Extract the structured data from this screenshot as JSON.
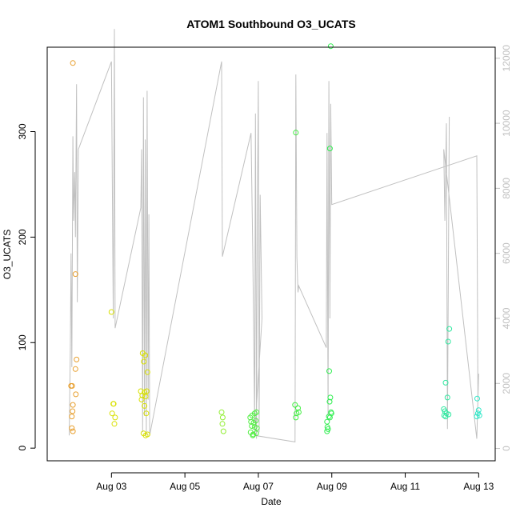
{
  "chart_data": {
    "type": "scatter",
    "title": "ATOM1 Southbound O3_UCATS",
    "xlabel": "Date",
    "ylabel": "O3_UCATS",
    "x_ticks": [
      "Aug 03",
      "Aug 05",
      "Aug 07",
      "Aug 09",
      "Aug 11",
      "Aug 13"
    ],
    "x_tick_values": [
      3,
      5,
      7,
      9,
      11,
      13
    ],
    "x_range": [
      1.25,
      13.45
    ],
    "y_ticks": [
      0,
      100,
      200,
      300
    ],
    "y_range": [
      -12,
      380
    ],
    "y2_ticks": [
      0,
      2000,
      4000,
      6000,
      8000,
      10000,
      12000
    ],
    "y2_range": [
      -380,
      12340
    ],
    "y2_color": "#c0c0c0",
    "grid": false,
    "series": [
      {
        "type": "points",
        "color_by_date": true,
        "points": [
          {
            "x": 1.95,
            "y": 365,
            "color": "#e8a030"
          },
          {
            "x": 1.9,
            "y": 59,
            "color": "#e8a030"
          },
          {
            "x": 1.93,
            "y": 59,
            "color": "#e8a030"
          },
          {
            "x": 1.95,
            "y": 41,
            "color": "#e8a030"
          },
          {
            "x": 1.94,
            "y": 35,
            "color": "#e8a030"
          },
          {
            "x": 1.92,
            "y": 30,
            "color": "#e8a030"
          },
          {
            "x": 1.92,
            "y": 19,
            "color": "#e8a030"
          },
          {
            "x": 1.95,
            "y": 16,
            "color": "#e8a030"
          },
          {
            "x": 2.02,
            "y": 165,
            "color": "#e8a030"
          },
          {
            "x": 2.05,
            "y": 84,
            "color": "#e8a030"
          },
          {
            "x": 2.02,
            "y": 75,
            "color": "#e8a030"
          },
          {
            "x": 2.03,
            "y": 51,
            "color": "#e8a030"
          },
          {
            "x": 3.0,
            "y": 129,
            "color": "#d8e000"
          },
          {
            "x": 3.05,
            "y": 42,
            "color": "#d8e000"
          },
          {
            "x": 3.06,
            "y": 42,
            "color": "#d8e000"
          },
          {
            "x": 3.02,
            "y": 33,
            "color": "#d8e000"
          },
          {
            "x": 3.1,
            "y": 29,
            "color": "#d8e000"
          },
          {
            "x": 3.08,
            "y": 23,
            "color": "#d8e000"
          },
          {
            "x": 3.85,
            "y": 90,
            "color": "#d8e000"
          },
          {
            "x": 3.92,
            "y": 88,
            "color": "#d8e000"
          },
          {
            "x": 3.88,
            "y": 82,
            "color": "#d8e000"
          },
          {
            "x": 3.98,
            "y": 72,
            "color": "#d8e000"
          },
          {
            "x": 3.8,
            "y": 54,
            "color": "#d8e000"
          },
          {
            "x": 3.9,
            "y": 53,
            "color": "#d8e000"
          },
          {
            "x": 3.96,
            "y": 54,
            "color": "#d8e000"
          },
          {
            "x": 3.84,
            "y": 50,
            "color": "#d8e000"
          },
          {
            "x": 3.93,
            "y": 49,
            "color": "#d8e000"
          },
          {
            "x": 3.82,
            "y": 46,
            "color": "#d8e000"
          },
          {
            "x": 3.9,
            "y": 40,
            "color": "#d8e000"
          },
          {
            "x": 3.95,
            "y": 33,
            "color": "#d8e000"
          },
          {
            "x": 3.87,
            "y": 14,
            "color": "#d8e000"
          },
          {
            "x": 3.93,
            "y": 12,
            "color": "#d8e000"
          },
          {
            "x": 3.98,
            "y": 13,
            "color": "#d8e000"
          },
          {
            "x": 6.0,
            "y": 34,
            "color": "#90ee30"
          },
          {
            "x": 6.03,
            "y": 29,
            "color": "#90ee30"
          },
          {
            "x": 6.02,
            "y": 23,
            "color": "#90ee30"
          },
          {
            "x": 6.05,
            "y": 16,
            "color": "#90ee30"
          },
          {
            "x": 6.78,
            "y": 29,
            "color": "#50ee40"
          },
          {
            "x": 6.83,
            "y": 31,
            "color": "#50ee40"
          },
          {
            "x": 6.9,
            "y": 33,
            "color": "#50ee40"
          },
          {
            "x": 6.95,
            "y": 34,
            "color": "#50ee40"
          },
          {
            "x": 6.8,
            "y": 25,
            "color": "#50ee40"
          },
          {
            "x": 6.87,
            "y": 24,
            "color": "#50ee40"
          },
          {
            "x": 6.93,
            "y": 26,
            "color": "#50ee40"
          },
          {
            "x": 6.82,
            "y": 21,
            "color": "#50ee40"
          },
          {
            "x": 6.9,
            "y": 20,
            "color": "#50ee40"
          },
          {
            "x": 6.96,
            "y": 19,
            "color": "#50ee40"
          },
          {
            "x": 6.79,
            "y": 15,
            "color": "#50ee40"
          },
          {
            "x": 6.86,
            "y": 13,
            "color": "#50ee40"
          },
          {
            "x": 6.94,
            "y": 14,
            "color": "#50ee40"
          },
          {
            "x": 6.85,
            "y": 12,
            "color": "#50ee40"
          },
          {
            "x": 8.02,
            "y": 299,
            "color": "#40ee40"
          },
          {
            "x": 8.0,
            "y": 41,
            "color": "#40ee40"
          },
          {
            "x": 8.08,
            "y": 38,
            "color": "#40ee40"
          },
          {
            "x": 8.04,
            "y": 33,
            "color": "#40ee40"
          },
          {
            "x": 8.1,
            "y": 34,
            "color": "#40ee40"
          },
          {
            "x": 8.02,
            "y": 29,
            "color": "#40ee40"
          },
          {
            "x": 8.97,
            "y": 381,
            "color": "#30ee50"
          },
          {
            "x": 8.95,
            "y": 284,
            "color": "#30ee50"
          },
          {
            "x": 8.93,
            "y": 73,
            "color": "#30ee50"
          },
          {
            "x": 8.96,
            "y": 48,
            "color": "#30ee50"
          },
          {
            "x": 8.94,
            "y": 44,
            "color": "#30ee50"
          },
          {
            "x": 8.98,
            "y": 34,
            "color": "#30ee50"
          },
          {
            "x": 8.99,
            "y": 33,
            "color": "#30ee50"
          },
          {
            "x": 8.92,
            "y": 30,
            "color": "#30ee50"
          },
          {
            "x": 8.95,
            "y": 29,
            "color": "#30ee50"
          },
          {
            "x": 8.87,
            "y": 25,
            "color": "#30ee50"
          },
          {
            "x": 8.88,
            "y": 20,
            "color": "#30ee50"
          },
          {
            "x": 8.9,
            "y": 18,
            "color": "#30ee50"
          },
          {
            "x": 8.87,
            "y": 16,
            "color": "#30ee50"
          },
          {
            "x": 12.2,
            "y": 113,
            "color": "#30e8a0"
          },
          {
            "x": 12.17,
            "y": 101,
            "color": "#30e8a0"
          },
          {
            "x": 12.1,
            "y": 62,
            "color": "#30e8a0"
          },
          {
            "x": 12.15,
            "y": 48,
            "color": "#30e8a0"
          },
          {
            "x": 12.05,
            "y": 37,
            "color": "#30e8a0"
          },
          {
            "x": 12.08,
            "y": 35,
            "color": "#30e8a0"
          },
          {
            "x": 12.12,
            "y": 33,
            "color": "#30e8a0"
          },
          {
            "x": 12.06,
            "y": 31,
            "color": "#30e8a0"
          },
          {
            "x": 12.18,
            "y": 32,
            "color": "#30e8a0"
          },
          {
            "x": 12.1,
            "y": 30,
            "color": "#30e8a0"
          },
          {
            "x": 12.96,
            "y": 47,
            "color": "#30e8c8"
          },
          {
            "x": 13.0,
            "y": 36,
            "color": "#30e8c8"
          },
          {
            "x": 12.98,
            "y": 33,
            "color": "#30e8c8"
          },
          {
            "x": 13.02,
            "y": 31,
            "color": "#30e8c8"
          },
          {
            "x": 12.95,
            "y": 30,
            "color": "#30e8c8"
          }
        ]
      },
      {
        "type": "line",
        "axis": "right",
        "color": "#c0c0c0",
        "points": [
          [
            1.85,
            400
          ],
          [
            1.88,
            3000
          ],
          [
            1.9,
            6000
          ],
          [
            1.92,
            2500
          ],
          [
            1.95,
            9600
          ],
          [
            1.97,
            7000
          ],
          [
            2.0,
            8500
          ],
          [
            2.02,
            6500
          ],
          [
            2.05,
            11200
          ],
          [
            2.07,
            4500
          ],
          [
            2.1,
            9200
          ],
          [
            3.0,
            11900
          ],
          [
            3.05,
            4000
          ],
          [
            3.08,
            12900
          ],
          [
            3.1,
            3700
          ],
          [
            3.8,
            7400
          ],
          [
            3.82,
            9200
          ],
          [
            3.85,
            500
          ],
          [
            3.87,
            10800
          ],
          [
            3.9,
            1000
          ],
          [
            3.92,
            9500
          ],
          [
            3.95,
            400
          ],
          [
            3.97,
            11000
          ],
          [
            4.0,
            1500
          ],
          [
            4.02,
            7200
          ],
          [
            4.04,
            400
          ],
          [
            6.0,
            11900
          ],
          [
            6.02,
            5900
          ],
          [
            6.8,
            9700
          ],
          [
            6.85,
            6000
          ],
          [
            6.9,
            800
          ],
          [
            6.92,
            10300
          ],
          [
            6.95,
            300
          ],
          [
            6.97,
            6800
          ],
          [
            7.0,
            11300
          ],
          [
            7.02,
            500
          ],
          [
            7.05,
            7800
          ],
          [
            7.1,
            4000
          ],
          [
            6.9,
            400
          ],
          [
            8.0,
            200
          ],
          [
            8.02,
            11500
          ],
          [
            8.05,
            5900
          ],
          [
            8.08,
            4800
          ],
          [
            8.1,
            5000
          ],
          [
            8.85,
            3100
          ],
          [
            8.87,
            9700
          ],
          [
            8.9,
            1000
          ],
          [
            8.92,
            11300
          ],
          [
            8.95,
            4000
          ],
          [
            8.97,
            10600
          ],
          [
            9.0,
            7500
          ],
          [
            12.95,
            9000
          ],
          [
            12.98,
            1500
          ],
          [
            13.0,
            2300
          ],
          [
            12.95,
            300
          ],
          [
            12.05,
            9200
          ],
          [
            12.08,
            7000
          ],
          [
            12.12,
            10000
          ],
          [
            12.15,
            600
          ],
          [
            12.2,
            10200
          ]
        ]
      }
    ]
  }
}
